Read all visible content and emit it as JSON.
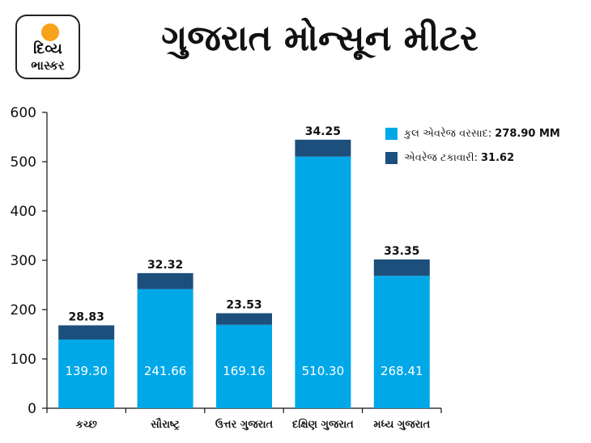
{
  "logo": {
    "line1": "દિવ્ય",
    "line2": "ભાસ્કર"
  },
  "title": "ગુજરાત મોન્સૂન મીટર",
  "colors": {
    "base": "#00a8e8",
    "top": "#1d4f7c",
    "text_light": "#ffffff",
    "axis": "#111111"
  },
  "legend": {
    "items": [
      {
        "label": "કુલ એવરેજ વરસાદ:",
        "value": "278.90 MM",
        "color": "#00a8e8"
      },
      {
        "label": "એવરેજ ટકાવારી:",
        "value": "31.62",
        "color": "#1d4f7c"
      }
    ]
  },
  "chart_data": {
    "type": "bar",
    "stacked": true,
    "categories": [
      "કચ્છ",
      "સૌરાષ્ટ્ર",
      "ઉત્તર ગુજરાત",
      "દક્ષિણ ગુજરાત",
      "મધ્ય ગુજરાત"
    ],
    "series": [
      {
        "name": "કુલ એવરેજ વરસાદ",
        "values": [
          139.3,
          241.66,
          169.16,
          510.3,
          268.41
        ],
        "labels": [
          "139.30",
          "241.66",
          "169.16",
          "510.30",
          "268.41"
        ]
      },
      {
        "name": "એવરેજ ટકાવારી",
        "values": [
          28.83,
          32.32,
          23.53,
          34.25,
          33.35
        ],
        "labels": [
          "28.83",
          "32.32",
          "23.53",
          "34.25",
          "33.35"
        ]
      }
    ],
    "ylim": [
      0,
      600
    ],
    "yticks": [
      "0",
      "100",
      "200",
      "300",
      "400",
      "500",
      "600"
    ],
    "grid": false,
    "legend_position": "top-right"
  }
}
